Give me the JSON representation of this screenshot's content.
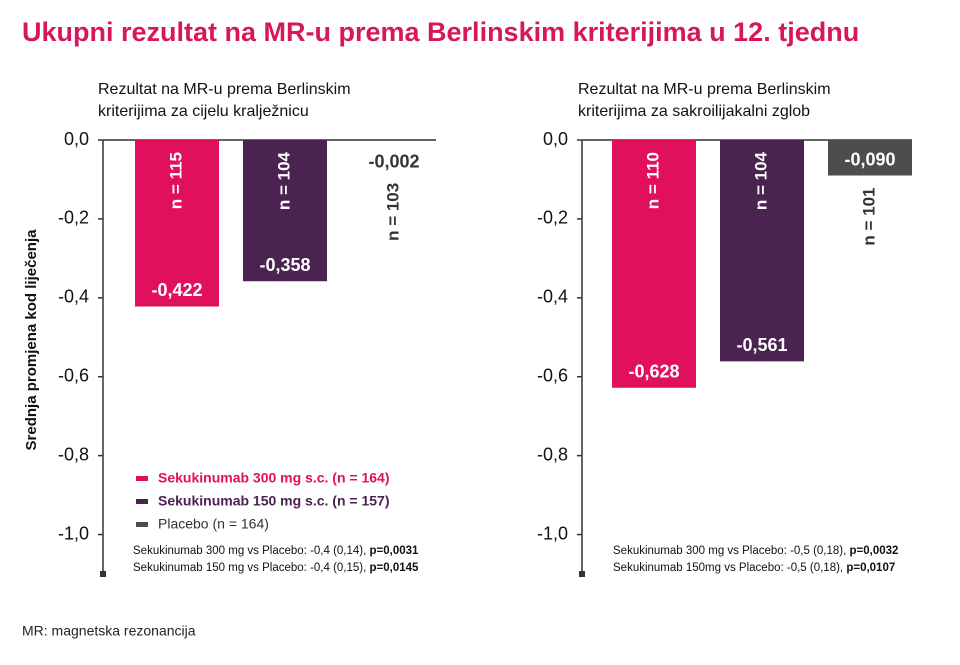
{
  "title": "Ukupni rezultat na MR-u prema Berlinskim kriterijima u 12. tjednu",
  "footnote": "MR: magnetska rezonancija",
  "legend": [
    "Sekukinumab 300 mg s.c. (n = 164)",
    "Sekukinumab 150 mg s.c. (n = 157)",
    "Placebo (n = 164)"
  ],
  "chart_data": [
    {
      "type": "bar",
      "subtitle": [
        "Rezultat na MR-u prema Berlinskim",
        "kriterijima za cijelu kralježnicu"
      ],
      "ylabel": "Srednja promjena kod liječenja",
      "categories": [
        "n = 115",
        "n = 104",
        "n = 103"
      ],
      "values": [
        -0.422,
        -0.358,
        -0.002
      ],
      "value_labels": [
        "-0,422",
        "-0,358",
        "-0,002"
      ],
      "colors": [
        "#e0105c",
        "#4b2350",
        "#4d4d4d"
      ],
      "ylim": [
        -1.1,
        0
      ],
      "yticks": [
        {
          "value": 0,
          "label": "0,0"
        },
        {
          "value": -0.2,
          "label": "-0,2"
        },
        {
          "value": -0.4,
          "label": "-0,4"
        },
        {
          "value": -0.6,
          "label": "-0,6"
        },
        {
          "value": -0.8,
          "label": "-0,8"
        },
        {
          "value": -1.0,
          "label": "-1,0"
        }
      ],
      "notes": [
        {
          "text": "Sekukinumab 300 mg vs Placebo: -0,4 (0,14), ",
          "p": "p=0,0031"
        },
        {
          "text": "Sekukinumab 150 mg vs Placebo: -0,4 (0,15), ",
          "p": "p=0,0145"
        }
      ]
    },
    {
      "type": "bar",
      "subtitle": [
        "Rezultat na MR-u prema Berlinskim",
        "kriterijima za sakroilijakalni zglob"
      ],
      "categories": [
        "n = 110",
        "n = 104",
        "n = 101"
      ],
      "values": [
        -0.628,
        -0.561,
        -0.09
      ],
      "value_labels": [
        "-0,628",
        "-0,561",
        "-0,090"
      ],
      "colors": [
        "#e0105c",
        "#4b2350",
        "#4d4d4d"
      ],
      "ylim": [
        -1.1,
        0
      ],
      "yticks": [
        {
          "value": 0,
          "label": "0,0"
        },
        {
          "value": -0.2,
          "label": "-0,2"
        },
        {
          "value": -0.4,
          "label": "-0,4"
        },
        {
          "value": -0.6,
          "label": "-0,6"
        },
        {
          "value": -0.8,
          "label": "-0,8"
        },
        {
          "value": -1.0,
          "label": "-1,0"
        }
      ],
      "notes": [
        {
          "text": "Sekukinumab 300 mg vs Placebo: -0,5 (0,18), ",
          "p": "p=0,0032"
        },
        {
          "text": "Sekukinumab 150mg vs Placebo: -0,5 (0,18), ",
          "p": "p=0,0107"
        }
      ]
    }
  ]
}
